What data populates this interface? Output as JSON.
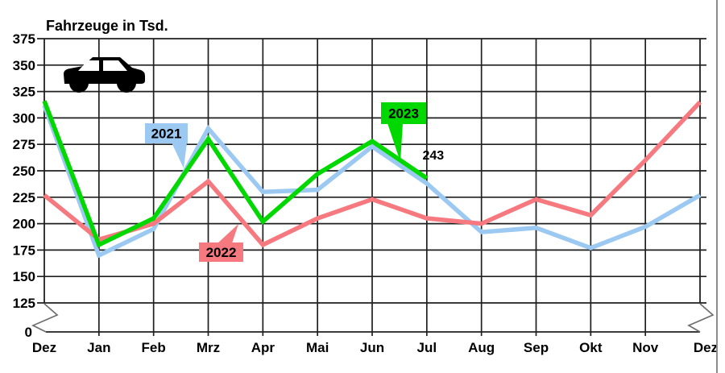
{
  "title": "Fahrzeuge in Tsd.",
  "page": {
    "background": "#ffffff",
    "edge_line_color": "#8c8c8c"
  },
  "colors": {
    "grid": "#1f1f1f",
    "axis_break": "#6e6e6e",
    "text": "#000000",
    "series_2021": "#9BC9F2",
    "series_2022": "#F6797F",
    "series_2023": "#00D800"
  },
  "icons": [
    {
      "name": "car-icon",
      "description": "black side-view car silhouette with two wheels"
    }
  ],
  "chart_data": {
    "type": "line",
    "title": "Fahrzeuge in Tsd.",
    "categories": [
      "Dez",
      "Jan",
      "Feb",
      "Mrz",
      "Apr",
      "Mai",
      "Jun",
      "Jul",
      "Aug",
      "Sep",
      "Okt",
      "Nov",
      "Dez"
    ],
    "y_ticks": [
      375,
      350,
      325,
      300,
      275,
      250,
      225,
      200,
      175,
      150,
      125
    ],
    "y_zero_tick": "0",
    "axis_break": true,
    "ylim": [
      0,
      375
    ],
    "plot_range": [
      125,
      375
    ],
    "grid": true,
    "legend_position": "callouts-attached-to-lines",
    "series": [
      {
        "name": "2021",
        "color": "#9BC9F2",
        "values": [
          312,
          170,
          195,
          290,
          230,
          232,
          273,
          238,
          192,
          196,
          177,
          197,
          227
        ]
      },
      {
        "name": "2022",
        "color": "#F6797F",
        "values": [
          227,
          185,
          200,
          240,
          180,
          205,
          223,
          205,
          200,
          223,
          208,
          260,
          315
        ]
      },
      {
        "name": "2023",
        "color": "#00D800",
        "values": [
          316,
          180,
          205,
          280,
          202,
          247,
          278,
          243
        ]
      }
    ],
    "annotations": [
      {
        "text": "243",
        "series": "2023",
        "category_index": 7,
        "value": 243
      }
    ]
  }
}
